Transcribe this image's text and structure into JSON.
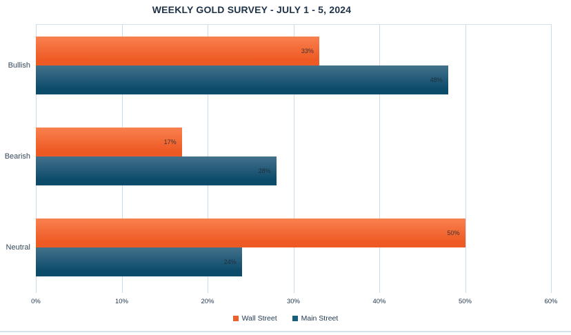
{
  "title": "WEEKLY GOLD SURVEY - JULY 1 - 5, 2024",
  "colors": {
    "title_text": "#1d3147",
    "gridline": "#c9dcea",
    "axis_text": "#22384e",
    "bar_label_text": "#1d2732"
  },
  "chart_data": {
    "type": "bar",
    "orientation": "horizontal",
    "title": "WEEKLY GOLD SURVEY - JULY 1 - 5, 2024",
    "categories": [
      "Bullish",
      "Bearish",
      "Neutral"
    ],
    "series": [
      {
        "name": "Wall Street",
        "values": [
          33,
          17,
          50
        ],
        "color": "#ee5a24",
        "color_light": "#f9814f",
        "legend_color": "#e8622f"
      },
      {
        "name": "Main Street",
        "values": [
          48,
          28,
          24
        ],
        "color": "#0d4b6b",
        "color_light": "#43718b",
        "legend_color": "#186079"
      }
    ],
    "value_suffix": "%",
    "xlabel": "",
    "ylabel": "",
    "xlim": [
      0,
      60
    ],
    "xticks": [
      "0%",
      "10%",
      "20%",
      "30%",
      "40%",
      "50%",
      "60%"
    ],
    "grid": true,
    "legend_position": "bottom"
  }
}
